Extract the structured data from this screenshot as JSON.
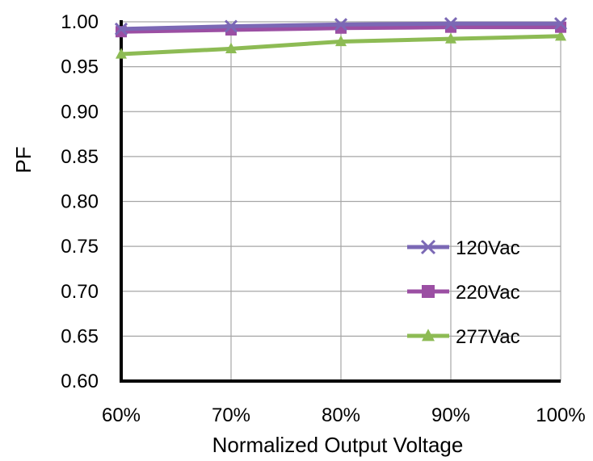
{
  "chart_data": {
    "type": "line",
    "title": "",
    "xlabel": "Normalized Output Voltage",
    "ylabel": "PF",
    "categories": [
      "60%",
      "70%",
      "80%",
      "90%",
      "100%"
    ],
    "ylim": [
      0.6,
      1.0
    ],
    "yticks": [
      "0.60",
      "0.65",
      "0.70",
      "0.75",
      "0.80",
      "0.85",
      "0.90",
      "0.95",
      "1.00"
    ],
    "grid": true,
    "legend_position": "bottom-right",
    "series": [
      {
        "name": "120Vac",
        "marker": "x",
        "color": "#7b68b5",
        "values": [
          0.992,
          0.995,
          0.997,
          0.998,
          0.998
        ]
      },
      {
        "name": "220Vac",
        "marker": "square",
        "color": "#9b4fa3",
        "values": [
          0.989,
          0.991,
          0.993,
          0.994,
          0.994
        ]
      },
      {
        "name": "277Vac",
        "marker": "triangle",
        "color": "#8dbb54",
        "values": [
          0.964,
          0.97,
          0.978,
          0.981,
          0.984
        ]
      }
    ]
  }
}
